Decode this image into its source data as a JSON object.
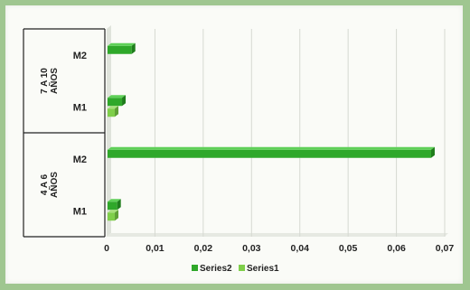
{
  "chart_data": {
    "type": "bar",
    "orientation": "horizontal",
    "groups": [
      {
        "label": "7 A 10 AÑOS",
        "categories": [
          "M2",
          "M1"
        ]
      },
      {
        "label": "4 A 6 AÑOS",
        "categories": [
          "M2",
          "M1"
        ]
      }
    ],
    "categories": [
      "7 A 10 AÑOS · M2",
      "7 A 10 AÑOS · M1",
      "4 A 6 AÑOS · M2",
      "4 A 6 AÑOS · M1"
    ],
    "series": [
      {
        "name": "Series2",
        "values": [
          0.005,
          0.003,
          0.067,
          0.002
        ]
      },
      {
        "name": "Series1",
        "values": [
          0,
          0.0015,
          0,
          0.0015
        ]
      }
    ],
    "xlim": [
      0,
      0.07
    ],
    "xticks": [
      "0",
      "0,01",
      "0,02",
      "0,03",
      "0,04",
      "0,05",
      "0,06",
      "0,07"
    ],
    "grid": true,
    "legend": "bottom",
    "colors": {
      "Series2": "#2fa82a",
      "Series1": "#7fcf4a",
      "frame": "#9fc690"
    }
  }
}
